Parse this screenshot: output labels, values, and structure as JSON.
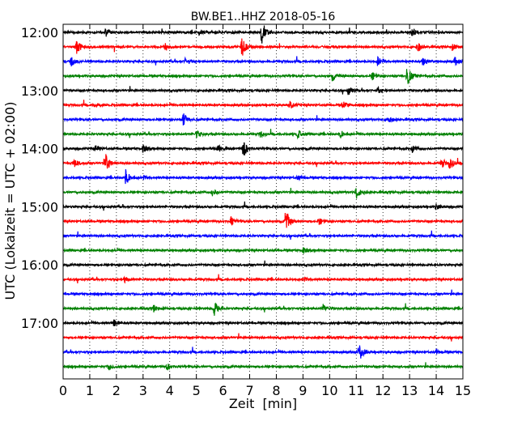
{
  "chart_data": {
    "type": "line",
    "title": "BW.BE1..HHZ 2018-05-16",
    "xlabel": "Zeit  [min]",
    "ylabel": "UTC (Lokalzeit = UTC + 02:00)",
    "xlim": [
      0,
      15
    ],
    "x_ticks": [
      "0",
      "1",
      "2",
      "3",
      "4",
      "5",
      "6",
      "7",
      "8",
      "9",
      "10",
      "11",
      "12",
      "13",
      "14",
      "15"
    ],
    "y_tick_labels": [
      "12:00",
      "13:00",
      "14:00",
      "15:00",
      "16:00",
      "17:00"
    ],
    "grid": "vertical dotted at each minute",
    "trace_colors": [
      "#000000",
      "#ff0000",
      "#0000ff",
      "#008000"
    ],
    "traces": [
      {
        "start": "12:00",
        "color": "#000000",
        "events": [
          {
            "t": 1.6,
            "amp": 5
          },
          {
            "t": 5.1,
            "amp": 4
          },
          {
            "t": 7.45,
            "amp": 16
          },
          {
            "t": 13.1,
            "amp": 6
          }
        ]
      },
      {
        "start": "12:15",
        "color": "#ff0000",
        "events": [
          {
            "t": 0.5,
            "amp": 11
          },
          {
            "t": 3.8,
            "amp": 5
          },
          {
            "t": 6.7,
            "amp": 13
          },
          {
            "t": 13.3,
            "amp": 6
          },
          {
            "t": 14.6,
            "amp": 4
          }
        ]
      },
      {
        "start": "12:30",
        "color": "#0000ff",
        "events": [
          {
            "t": 0.3,
            "amp": 6
          },
          {
            "t": 4.6,
            "amp": 5
          },
          {
            "t": 11.8,
            "amp": 6
          },
          {
            "t": 13.5,
            "amp": 5
          },
          {
            "t": 14.7,
            "amp": 5
          }
        ]
      },
      {
        "start": "12:45",
        "color": "#008000",
        "events": [
          {
            "t": 10.1,
            "amp": 6
          },
          {
            "t": 11.6,
            "amp": 5
          },
          {
            "t": 12.9,
            "amp": 14
          }
        ]
      },
      {
        "start": "13:00",
        "color": "#000000",
        "events": [
          {
            "t": 10.7,
            "amp": 6
          },
          {
            "t": 11.8,
            "amp": 4
          }
        ]
      },
      {
        "start": "13:15",
        "color": "#ff0000",
        "events": [
          {
            "t": 1.2,
            "amp": 4
          },
          {
            "t": 8.5,
            "amp": 5
          },
          {
            "t": 10.5,
            "amp": 4
          }
        ]
      },
      {
        "start": "13:30",
        "color": "#0000ff",
        "events": [
          {
            "t": 4.5,
            "amp": 9
          },
          {
            "t": 12.2,
            "amp": 4
          }
        ]
      },
      {
        "start": "13:45",
        "color": "#008000",
        "events": [
          {
            "t": 5.0,
            "amp": 5
          },
          {
            "t": 7.4,
            "amp": 4
          },
          {
            "t": 8.8,
            "amp": 5
          },
          {
            "t": 10.4,
            "amp": 5
          }
        ]
      },
      {
        "start": "14:00",
        "color": "#000000",
        "events": [
          {
            "t": 1.2,
            "amp": 4
          },
          {
            "t": 3.0,
            "amp": 5
          },
          {
            "t": 5.8,
            "amp": 5
          },
          {
            "t": 6.75,
            "amp": 12
          },
          {
            "t": 13.1,
            "amp": 5
          }
        ]
      },
      {
        "start": "14:15",
        "color": "#ff0000",
        "events": [
          {
            "t": 0.4,
            "amp": 6
          },
          {
            "t": 1.6,
            "amp": 12
          },
          {
            "t": 14.2,
            "amp": 6
          },
          {
            "t": 14.5,
            "amp": 9
          }
        ]
      },
      {
        "start": "14:30",
        "color": "#0000ff",
        "events": [
          {
            "t": 2.35,
            "amp": 10
          },
          {
            "t": 3.0,
            "amp": 3
          },
          {
            "t": 8.8,
            "amp": 3
          }
        ]
      },
      {
        "start": "14:45",
        "color": "#008000",
        "events": [
          {
            "t": 5.6,
            "amp": 4
          },
          {
            "t": 11.0,
            "amp": 8
          }
        ]
      },
      {
        "start": "15:00",
        "color": "#000000",
        "events": [
          {
            "t": 14.0,
            "amp": 4
          }
        ]
      },
      {
        "start": "15:15",
        "color": "#ff0000",
        "events": [
          {
            "t": 6.3,
            "amp": 5
          },
          {
            "t": 8.35,
            "amp": 14
          },
          {
            "t": 9.6,
            "amp": 4
          }
        ]
      },
      {
        "start": "15:30",
        "color": "#0000ff",
        "events": []
      },
      {
        "start": "15:45",
        "color": "#008000",
        "events": [
          {
            "t": 9.0,
            "amp": 4
          }
        ]
      },
      {
        "start": "16:00",
        "color": "#000000",
        "events": []
      },
      {
        "start": "16:15",
        "color": "#ff0000",
        "events": [
          {
            "t": 2.3,
            "amp": 3
          },
          {
            "t": 9.0,
            "amp": 4
          }
        ]
      },
      {
        "start": "16:30",
        "color": "#0000ff",
        "events": []
      },
      {
        "start": "16:45",
        "color": "#008000",
        "events": [
          {
            "t": 3.4,
            "amp": 4
          },
          {
            "t": 5.65,
            "amp": 10
          },
          {
            "t": 9.75,
            "amp": 5
          }
        ]
      },
      {
        "start": "17:00",
        "color": "#000000",
        "events": [
          {
            "t": 1.9,
            "amp": 4
          }
        ]
      },
      {
        "start": "17:15",
        "color": "#ff0000",
        "events": []
      },
      {
        "start": "17:30",
        "color": "#0000ff",
        "events": [
          {
            "t": 11.1,
            "amp": 13
          },
          {
            "t": 14.0,
            "amp": 3
          }
        ]
      },
      {
        "start": "17:45",
        "color": "#008000",
        "events": [
          {
            "t": 1.7,
            "amp": 4
          },
          {
            "t": 3.9,
            "amp": 4
          }
        ]
      }
    ]
  }
}
